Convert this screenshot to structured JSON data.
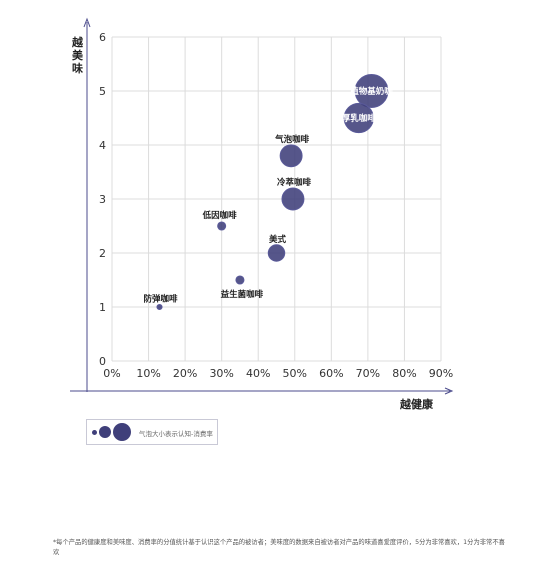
{
  "chart_data": {
    "type": "scatter",
    "subtype": "bubble",
    "xlabel": "越健康",
    "ylabel": "越美味",
    "xlim": [
      0,
      0.9
    ],
    "ylim": [
      0,
      6
    ],
    "x_ticks": [
      "0%",
      "10%",
      "20%",
      "30%",
      "40%",
      "50%",
      "60%",
      "70%",
      "80%",
      "90%"
    ],
    "y_ticks": [
      "0",
      "1",
      "2",
      "3",
      "4",
      "5",
      "6"
    ],
    "grid": true,
    "bubble_size_meaning": "气泡大小表示认知-消费率",
    "color": "#3f3f7a",
    "points": [
      {
        "label": "植物基奶咖",
        "x": 0.71,
        "y": 5.0,
        "size": 0.09
      },
      {
        "label": "厚乳咖啡",
        "x": 0.675,
        "y": 4.5,
        "size": 0.08
      },
      {
        "label": "气泡咖啡",
        "x": 0.49,
        "y": 3.8,
        "size": 0.06
      },
      {
        "label": "冷萃咖啡",
        "x": 0.495,
        "y": 3.0,
        "size": 0.06
      },
      {
        "label": "美式",
        "x": 0.45,
        "y": 2.0,
        "size": 0.045
      },
      {
        "label": "低因咖啡",
        "x": 0.3,
        "y": 2.5,
        "size": 0.022
      },
      {
        "label": "益生菌咖啡",
        "x": 0.35,
        "y": 1.5,
        "size": 0.022
      },
      {
        "label": "防弹咖啡",
        "x": 0.13,
        "y": 1.0,
        "size": 0.014
      }
    ]
  },
  "legend": {
    "text": "气泡大小表示认知-消费率"
  },
  "footnote": "*每个产品的健康度和美味度、消费率的分值统计基于认识这个产品的被访者；美味度的数据来自被访者对产品的味道喜爱度评价，5分为非常喜欢，1分为非常不喜欢",
  "colors": {
    "bubble": "#3f3f7a",
    "axis": "#4b4b8c",
    "grid": "#dcdcdc"
  }
}
